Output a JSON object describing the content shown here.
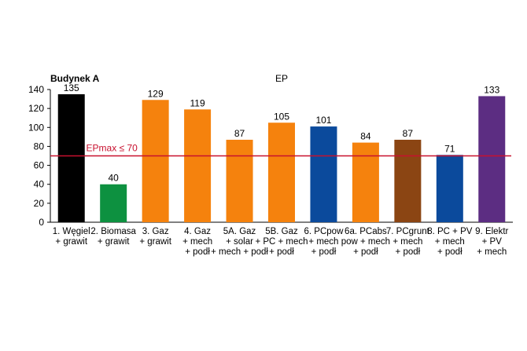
{
  "chart_data": {
    "type": "bar",
    "corner_label": "Budynek A",
    "title": "EP",
    "categories": [
      [
        "1. Węgiel",
        "+ grawit"
      ],
      [
        "2. Biomasa",
        "+ grawit"
      ],
      [
        "3. Gaz",
        "+ grawit"
      ],
      [
        "4. Gaz",
        "+ mech",
        "+ podł"
      ],
      [
        "5A. Gaz",
        "+ solar",
        "+ mech + podł"
      ],
      [
        "5B. Gaz",
        "+ PC + mech",
        "+ podł"
      ],
      [
        "6. PCpow",
        "+ mech",
        "+ podł"
      ],
      [
        "6a. PCabs",
        "pow + mech",
        "+ podł"
      ],
      [
        "7. PCgrunt",
        "+ mech",
        "+ podł"
      ],
      [
        "8. PC + PV",
        "+ mech",
        "+ podł"
      ],
      [
        "9. Elektr",
        "+ PV",
        "+ mech"
      ]
    ],
    "values": [
      135,
      40,
      129,
      119,
      87,
      105,
      101,
      84,
      87,
      71,
      133
    ],
    "colors": [
      "#000000",
      "#0d9140",
      "#f5820d",
      "#f5820d",
      "#f5820d",
      "#f5820d",
      "#0b4a9c",
      "#f5820d",
      "#8b4513",
      "#0b4a9c",
      "#5c2d82"
    ],
    "ylim": [
      0,
      140
    ],
    "yticks": [
      0,
      20,
      40,
      60,
      80,
      100,
      120,
      140
    ],
    "reference_line": {
      "value": 70,
      "label": "EPmax ≤ 70",
      "color": "#c8102e"
    },
    "grid": false,
    "legend": "none"
  }
}
